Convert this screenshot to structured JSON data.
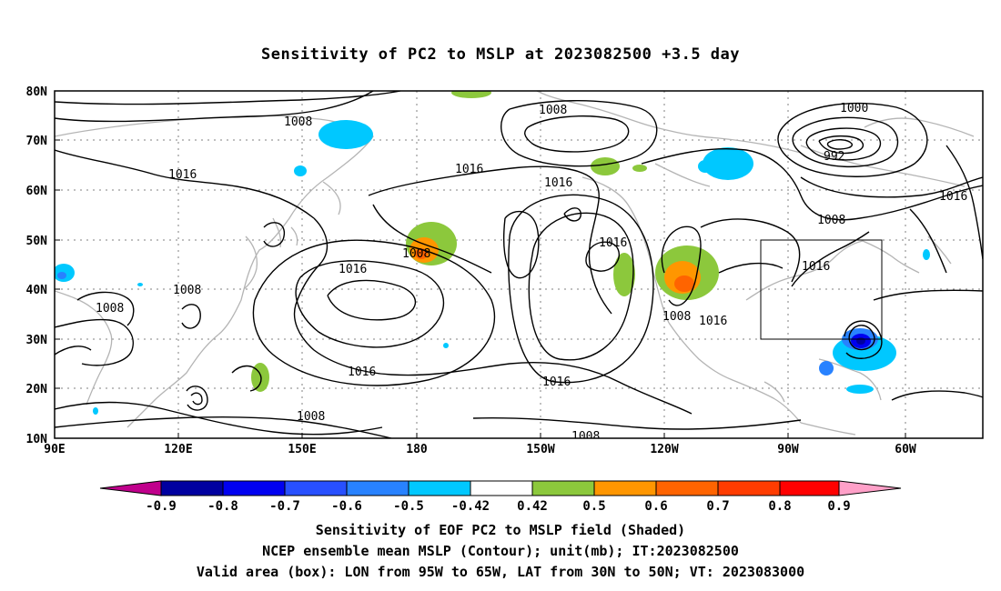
{
  "title": "Sensitivity of PC2 to MSLP at 2023082500 +3.5 day",
  "map": {
    "lat_labels": [
      "80N",
      "70N",
      "60N",
      "50N",
      "40N",
      "30N",
      "20N",
      "10N"
    ],
    "lon_labels": [
      "90E",
      "120E",
      "150E",
      "180",
      "150W",
      "120W",
      "90W",
      "60W"
    ],
    "contour_labels": [
      "1008",
      "1016",
      "1008",
      "1008",
      "1016",
      "1016",
      "1008",
      "1000",
      "992",
      "1016",
      "1016",
      "1008",
      "1016",
      "1008",
      "1016",
      "1016",
      "1016",
      "1008",
      "1016",
      "1008",
      "1008"
    ],
    "box": {
      "lon_from": "95W",
      "lon_to": "65W",
      "lat_from": "30N",
      "lat_to": "50N"
    },
    "colors": {
      "coast": "#b4b4b4",
      "contour": "#000000",
      "grid": "#808080"
    }
  },
  "colorbar": {
    "labels": [
      "-0.9",
      "-0.8",
      "-0.7",
      "-0.6",
      "-0.5",
      "-0.42",
      "0.42",
      "0.5",
      "0.6",
      "0.7",
      "0.8",
      "0.9"
    ],
    "colors": [
      "#c0008c",
      "#0000a0",
      "#0000f0",
      "#2850ff",
      "#2882ff",
      "#00c8ff",
      "#ffffff",
      "#8cc83c",
      "#ff9600",
      "#ff6400",
      "#ff3c00",
      "#ff0000",
      "#ffa0c8"
    ]
  },
  "captions": [
    "Sensitivity of EOF PC2 to MSLP field (Shaded)",
    "NCEP ensemble mean MSLP (Contour); unit(mb); IT:2023082500",
    "Valid area (box): LON from 95W to 65W, LAT from 30N to 50N; VT: 2023083000"
  ]
}
